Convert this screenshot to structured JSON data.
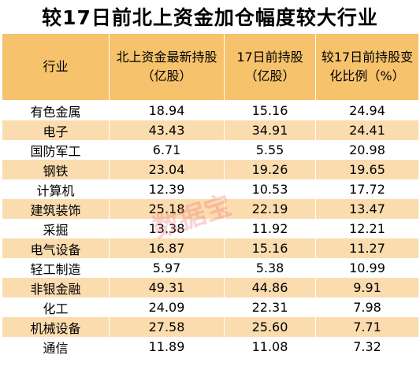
{
  "title": "较17日前北上资金加仓幅度较大行业",
  "watermark": "数据宝",
  "colors": {
    "header_bg": "#f6c26c",
    "stripe_bg": "#fbdcae",
    "watermark": "#ec7878"
  },
  "table": {
    "headers": [
      "行业",
      "北上资金最新持股（亿股）",
      "17日前持股（亿股）",
      "较17日前持股变化比例（%）"
    ],
    "rows": [
      [
        "有色金属",
        "18.94",
        "15.16",
        "24.94"
      ],
      [
        "电子",
        "43.43",
        "34.91",
        "24.41"
      ],
      [
        "国防军工",
        "6.71",
        "5.55",
        "20.98"
      ],
      [
        "钢铁",
        "23.04",
        "19.26",
        "19.65"
      ],
      [
        "计算机",
        "12.39",
        "10.53",
        "17.72"
      ],
      [
        "建筑装饰",
        "25.18",
        "22.19",
        "13.47"
      ],
      [
        "采掘",
        "13.38",
        "11.92",
        "12.21"
      ],
      [
        "电气设备",
        "16.87",
        "15.16",
        "11.27"
      ],
      [
        "轻工制造",
        "5.97",
        "5.38",
        "10.99"
      ],
      [
        "非银金融",
        "49.31",
        "44.86",
        "9.91"
      ],
      [
        "化工",
        "24.09",
        "22.31",
        "7.98"
      ],
      [
        "机械设备",
        "27.58",
        "25.60",
        "7.71"
      ],
      [
        "通信",
        "11.89",
        "11.08",
        "7.32"
      ]
    ]
  }
}
